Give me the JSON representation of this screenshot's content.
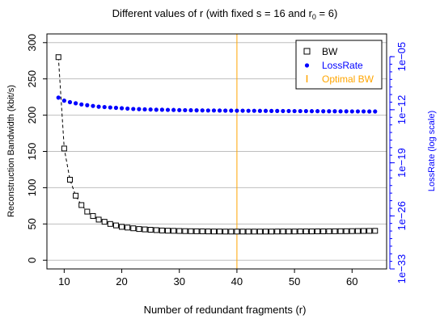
{
  "chart_data": {
    "type": "scatter",
    "title": {
      "prefix": "Different values of r (with fixed s = 16 and r",
      "subscript": "0",
      "suffix": " = 6)"
    },
    "xlabel": "Number of redundant fragments (r)",
    "ylabel_left": "Reconstruction Bandwidth (kbit/s)",
    "ylabel_right": "LossRate (log scale)",
    "xlim": [
      7,
      66
    ],
    "ylim_left": [
      -12,
      312
    ],
    "ylim_right_log10": [
      -33,
      -2
    ],
    "x_ticks": [
      "10",
      "20",
      "30",
      "40",
      "50",
      "60"
    ],
    "y_ticks_left": [
      "0",
      "50",
      "100",
      "150",
      "200",
      "250",
      "300"
    ],
    "y_ticks_right": [
      "1e−33",
      "1e−26",
      "1e−19",
      "1e−12",
      "1e−05"
    ],
    "grid": true,
    "legend": {
      "position": "top-right",
      "entries": [
        "BW",
        "LossRate",
        "Optimal BW"
      ]
    },
    "optimal_x": 40,
    "colors": {
      "bw": "#000000",
      "lossrate": "#0000ff",
      "optimal": "#ffa500",
      "right_axis": "#0000ff",
      "grid": "#bebebe"
    },
    "x": [
      9,
      10,
      11,
      12,
      13,
      14,
      15,
      16,
      17,
      18,
      19,
      20,
      21,
      22,
      23,
      24,
      25,
      26,
      27,
      28,
      29,
      30,
      31,
      32,
      33,
      34,
      35,
      36,
      37,
      38,
      39,
      40,
      41,
      42,
      43,
      44,
      45,
      46,
      47,
      48,
      49,
      50,
      51,
      52,
      53,
      54,
      55,
      56,
      57,
      58,
      59,
      60,
      61,
      62,
      63,
      64
    ],
    "series": [
      {
        "name": "BW",
        "axis": "left",
        "marker": "open-square",
        "values": [
          280,
          154,
          111,
          89,
          76,
          67,
          61,
          56,
          53,
          50,
          48,
          46,
          45,
          44,
          43,
          42.5,
          42,
          41.5,
          41,
          40.7,
          40.5,
          40.3,
          40.1,
          40,
          39.9,
          39.8,
          39.7,
          39.6,
          39.6,
          39.5,
          39.5,
          39.5,
          39.5,
          39.5,
          39.5,
          39.5,
          39.5,
          39.5,
          39.6,
          39.6,
          39.6,
          39.6,
          39.7,
          39.7,
          39.7,
          39.8,
          39.8,
          39.9,
          39.9,
          40,
          40,
          40.1,
          40.2,
          40.3,
          40.4,
          40.5
        ]
      },
      {
        "name": "LossRate",
        "axis": "right",
        "marker": "filled-circle",
        "log10_values": [
          -10.4,
          -10.8,
          -11.0,
          -11.15,
          -11.3,
          -11.4,
          -11.5,
          -11.6,
          -11.65,
          -11.7,
          -11.75,
          -11.8,
          -11.85,
          -11.9,
          -11.92,
          -11.95,
          -11.97,
          -12.0,
          -12.0,
          -12.02,
          -12.03,
          -12.05,
          -12.06,
          -12.07,
          -12.08,
          -12.09,
          -12.1,
          -12.1,
          -12.11,
          -12.12,
          -12.12,
          -12.13,
          -12.13,
          -12.14,
          -12.14,
          -12.15,
          -12.15,
          -12.16,
          -12.16,
          -12.17,
          -12.17,
          -12.18,
          -12.18,
          -12.18,
          -12.19,
          -12.19,
          -12.2,
          -12.2,
          -12.2,
          -12.21,
          -12.21,
          -12.22,
          -12.22,
          -12.22,
          -12.23,
          -12.23
        ]
      }
    ]
  }
}
